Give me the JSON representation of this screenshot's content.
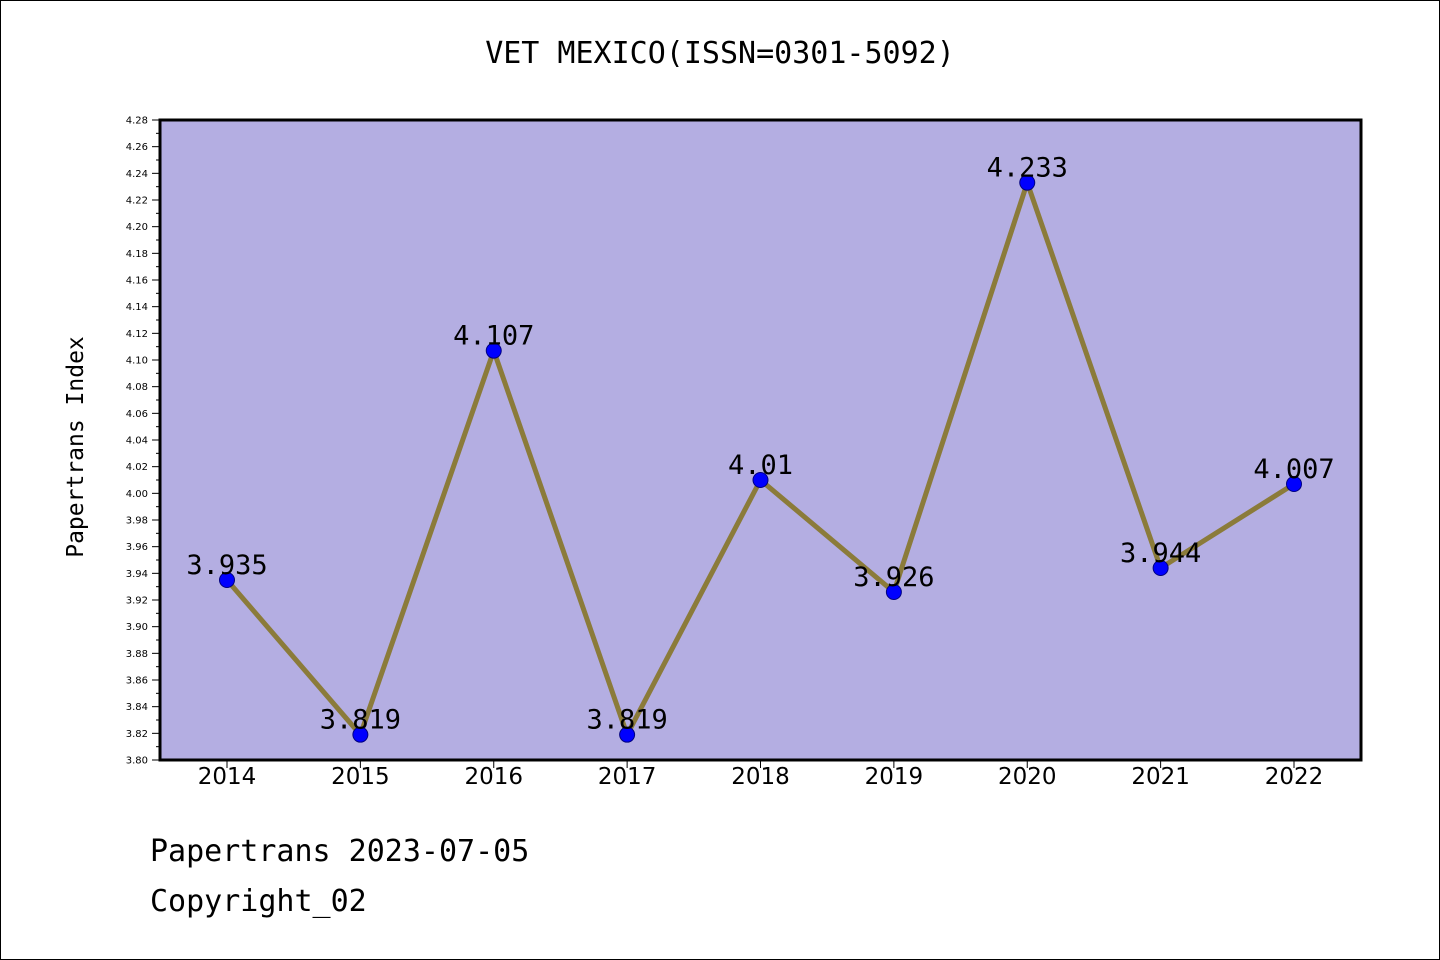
{
  "chart_data": {
    "type": "line",
    "title": "VET MEXICO(ISSN=0301-5092)",
    "xlabel": "",
    "ylabel": "Papertrans Index",
    "categories": [
      "2014",
      "2015",
      "2016",
      "2017",
      "2018",
      "2019",
      "2020",
      "2021",
      "2022"
    ],
    "series": [
      {
        "values": [
          3.935,
          3.819,
          4.107,
          3.819,
          4.01,
          3.926,
          4.233,
          3.944,
          4.007
        ],
        "labels": [
          "3.935",
          "3.819",
          "4.107",
          "3.819",
          "4.01",
          "3.926",
          "4.233",
          "3.944",
          "4.007"
        ]
      }
    ],
    "ylim": [
      3.8,
      4.28
    ],
    "y_ticks": [
      "3.80",
      "3.82",
      "3.84",
      "3.86",
      "3.88",
      "3.90",
      "3.92",
      "3.94",
      "3.96",
      "3.98",
      "4.00",
      "4.02",
      "4.04",
      "4.06",
      "4.08",
      "4.10",
      "4.12",
      "4.14",
      "4.16",
      "4.18",
      "4.20",
      "4.22",
      "4.24",
      "4.26",
      "4.28"
    ],
    "grid": false,
    "legend": "none",
    "colors": {
      "plot_background": "#b4aee2",
      "line": "#8b7b3a",
      "marker_fill": "#0000ff",
      "marker_edge": "#000080",
      "axes": "#000000"
    }
  },
  "footer": {
    "date": "Papertrans 2023-07-05",
    "copyright": "Copyright_02"
  }
}
